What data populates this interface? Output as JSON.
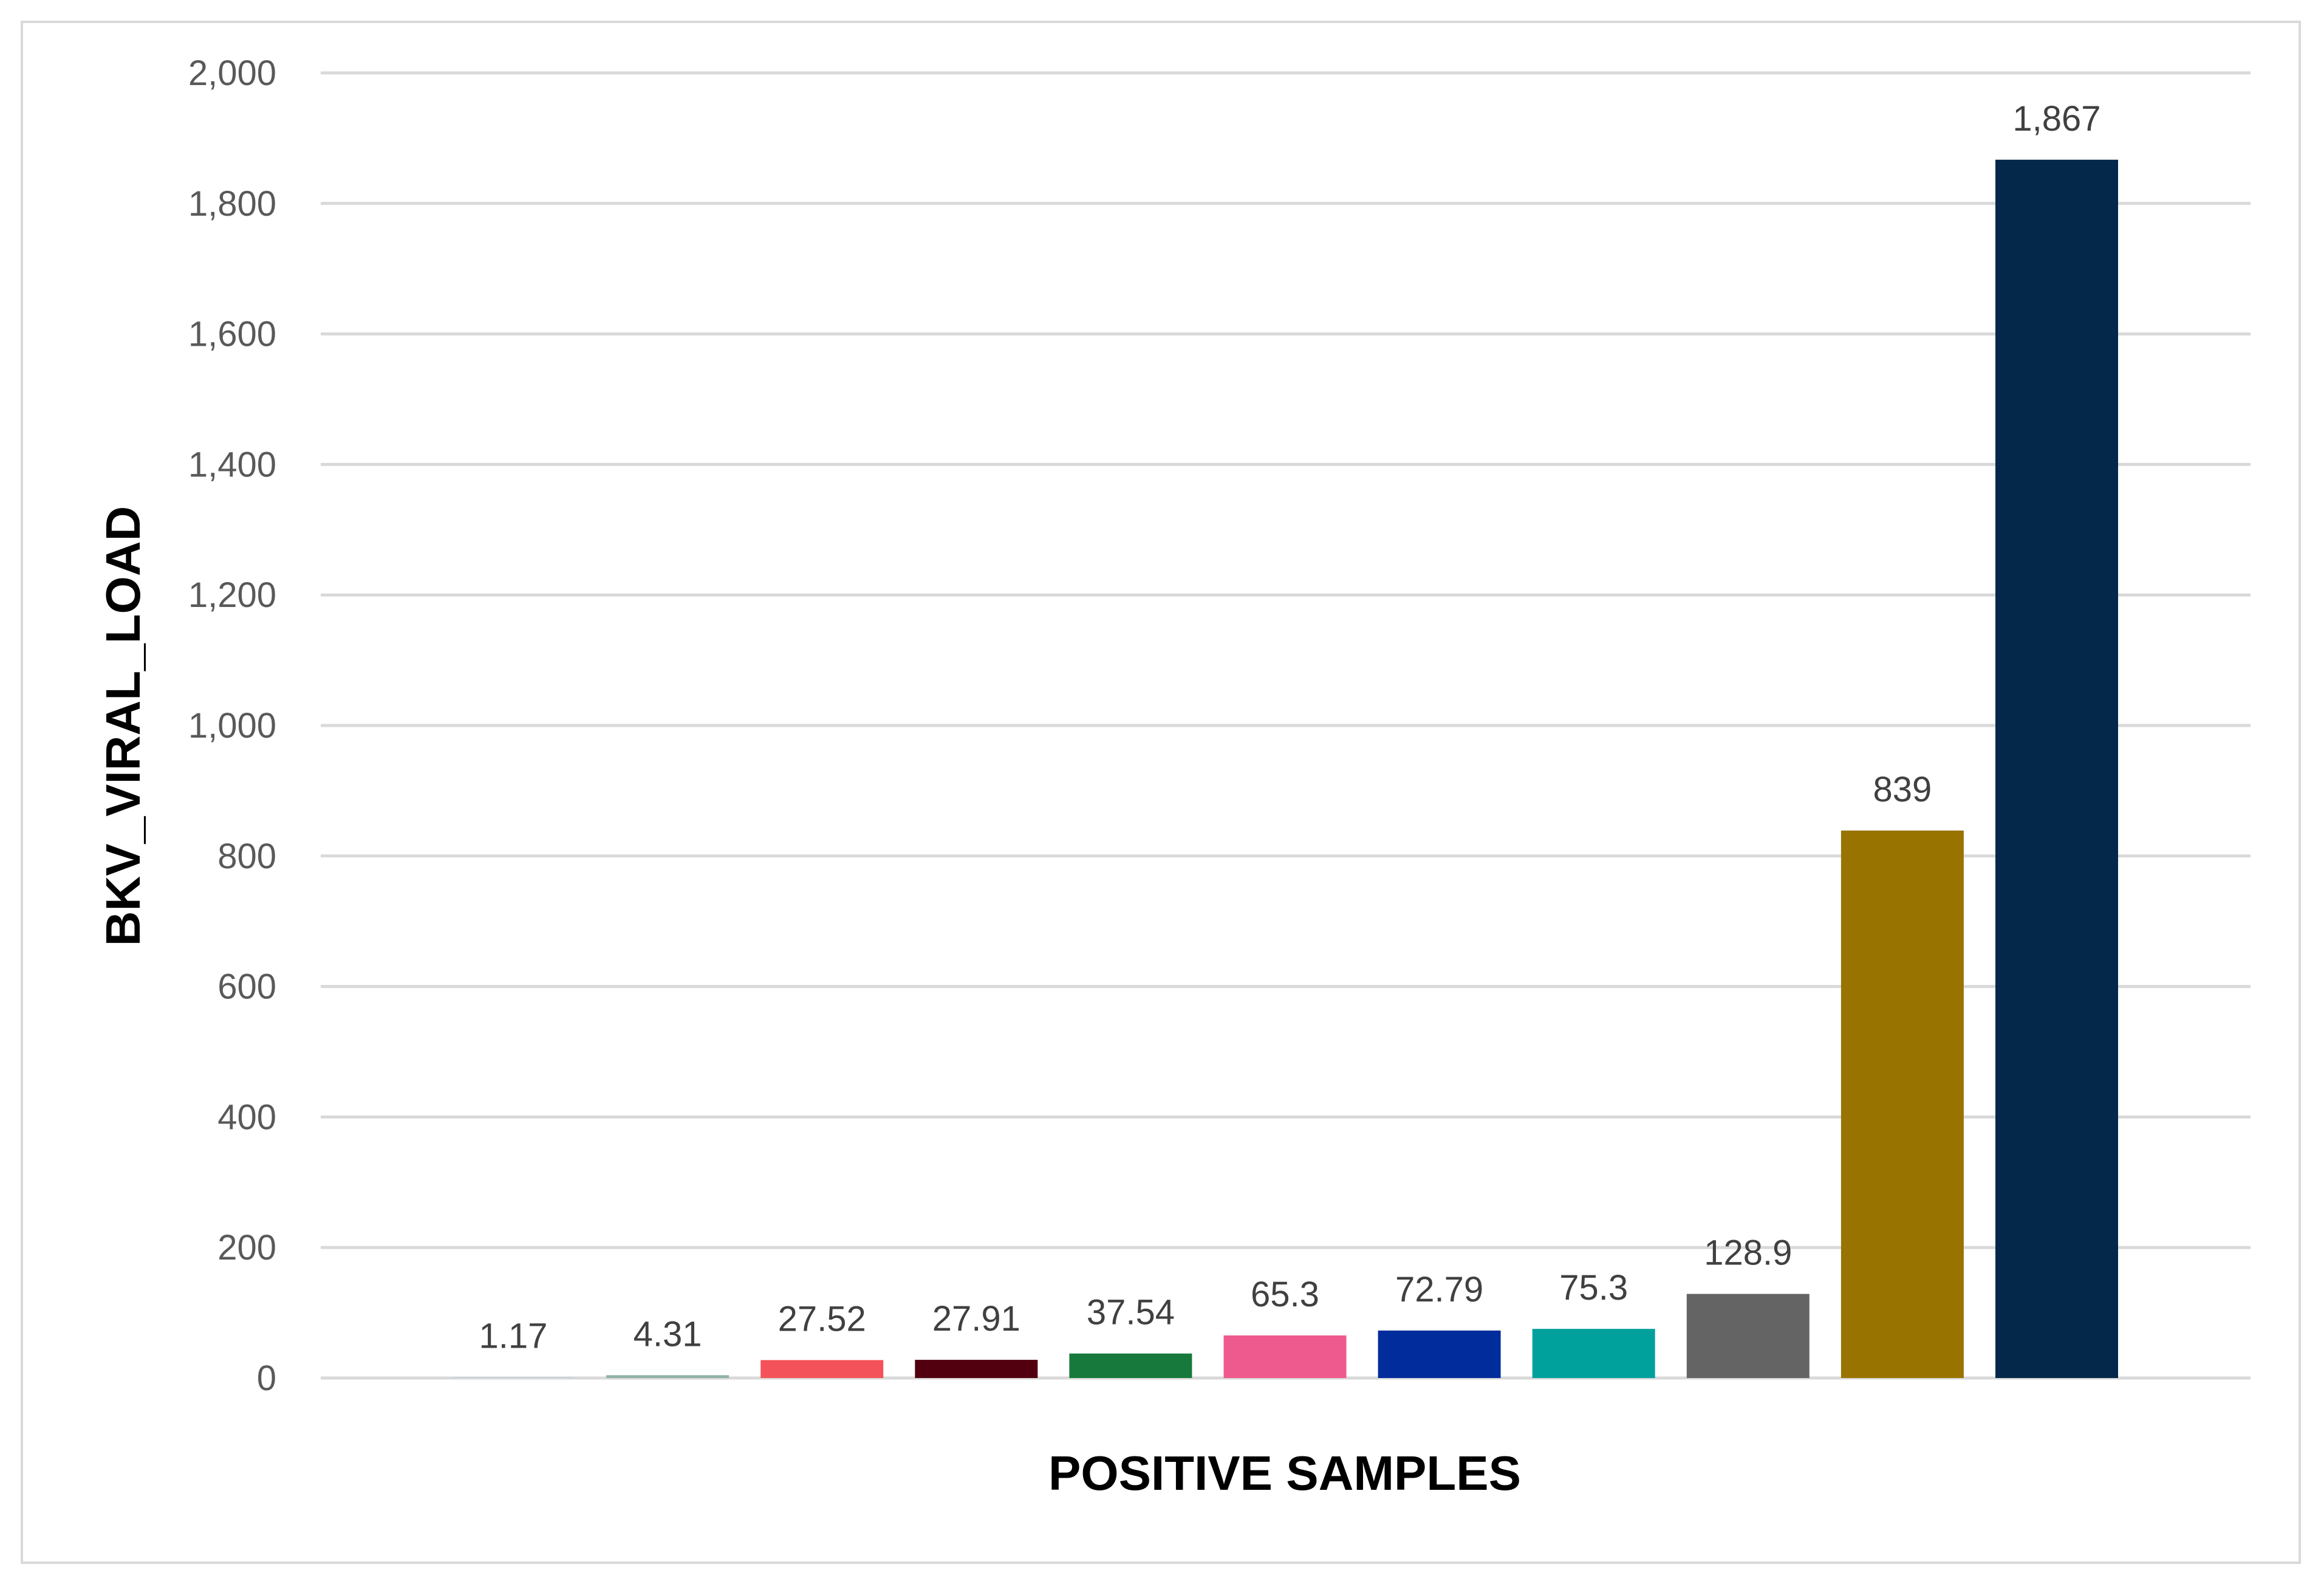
{
  "chart_data": {
    "type": "bar",
    "title": "",
    "xlabel": "POSITIVE SAMPLES",
    "ylabel": "BKV_VIRAL_LOAD",
    "ylim": [
      0,
      2000
    ],
    "yticks": [
      0,
      200,
      400,
      600,
      800,
      1000,
      1200,
      1400,
      1600,
      1800,
      2000
    ],
    "ytick_labels": [
      "0",
      "200",
      "400",
      "600",
      "800",
      "1,000",
      "1,200",
      "1,400",
      "1,600",
      "1,800",
      "2,000"
    ],
    "grid": true,
    "legend": "none",
    "values": [
      1.17,
      4.31,
      27.52,
      27.91,
      37.54,
      65.3,
      72.79,
      75.3,
      128.9,
      839,
      1867
    ],
    "data_labels": [
      "1.17",
      "4.31",
      "27.52",
      "27.91",
      "37.54",
      "65.3",
      "72.79",
      "75.3",
      "128.9",
      "839",
      "1,867"
    ],
    "colors": [
      "#c8d1d9",
      "#8fb2a6",
      "#f4525a",
      "#52000f",
      "#177a3c",
      "#ef5a8e",
      "#002d9b",
      "#00a19d",
      "#646464",
      "#997300",
      "#03284a"
    ]
  }
}
